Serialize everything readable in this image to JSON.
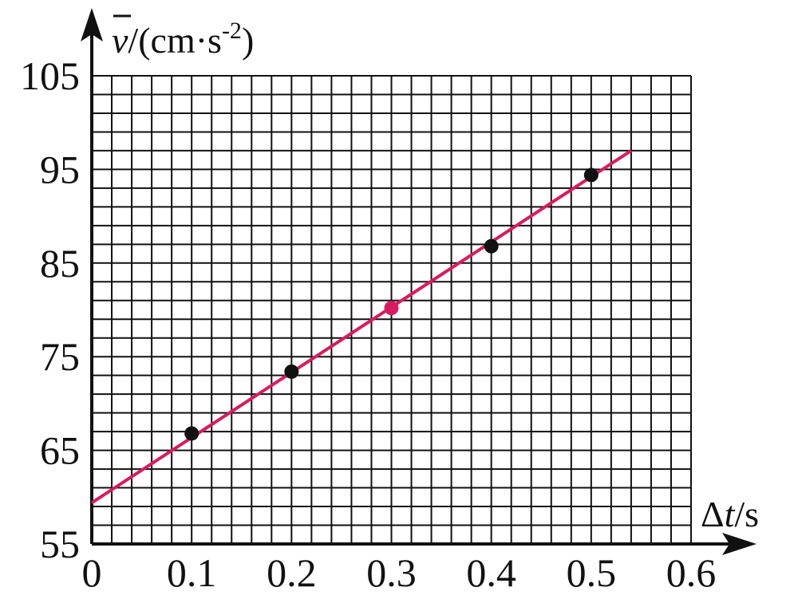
{
  "chart_data": {
    "type": "scatter",
    "xlabel": {
      "symbol": "Δ",
      "var": "t",
      "unit": "/s"
    },
    "ylabel": {
      "var": "v",
      "unit_pre": "/(cm·s",
      "unit_exp": "-2",
      "unit_post": ")"
    },
    "x_ticks": [
      "0",
      "0.1",
      "0.2",
      "0.3",
      "0.4",
      "0.5",
      "0.6"
    ],
    "y_ticks": [
      "55",
      "65",
      "75",
      "85",
      "95",
      "105"
    ],
    "xlim": [
      0,
      0.6
    ],
    "ylim": [
      55,
      105
    ],
    "grid": true,
    "grid_minor_x": 0.02,
    "grid_minor_y": 2,
    "points": [
      {
        "x": 0.1,
        "y": 66.8,
        "color": "#111111"
      },
      {
        "x": 0.2,
        "y": 73.4,
        "color": "#111111"
      },
      {
        "x": 0.3,
        "y": 80.2,
        "color": "#d81b60"
      },
      {
        "x": 0.4,
        "y": 86.8,
        "color": "#111111"
      },
      {
        "x": 0.5,
        "y": 94.4,
        "color": "#111111"
      }
    ],
    "fit_line": {
      "x": [
        0,
        0.54
      ],
      "y": [
        59.4,
        97
      ],
      "color": "#d81b60"
    }
  }
}
